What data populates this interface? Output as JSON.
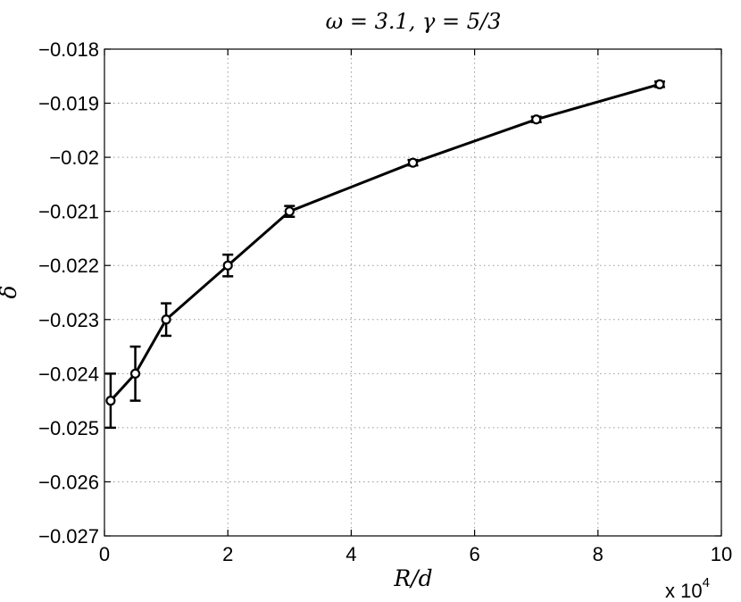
{
  "chart_data": {
    "type": "line",
    "title": "ω = 3.1, γ = 5/3",
    "xlabel": "R/d",
    "ylabel": "δ",
    "x_multiplier": "x 10",
    "x_multiplier_exp": "4",
    "xlim": [
      0,
      10
    ],
    "ylim": [
      -0.027,
      -0.018
    ],
    "x_ticks": [
      0,
      2,
      4,
      6,
      8,
      10
    ],
    "x_tick_labels": [
      "0",
      "2",
      "4",
      "6",
      "8",
      "10"
    ],
    "y_ticks": [
      -0.027,
      -0.026,
      -0.025,
      -0.024,
      -0.023,
      -0.022,
      -0.021,
      -0.02,
      -0.019,
      -0.018
    ],
    "y_tick_labels": [
      "−0.027",
      "−0.026",
      "−0.025",
      "−0.024",
      "−0.023",
      "−0.022",
      "−0.021",
      "−0.02",
      "−0.019",
      "−0.018"
    ],
    "grid": true,
    "line_color": "#000000",
    "series": [
      {
        "x": [
          0.1,
          0.5,
          1,
          2,
          3,
          5,
          7,
          9
        ],
        "y": [
          -0.0245,
          -0.024,
          -0.023,
          -0.022,
          -0.021,
          -0.0201,
          -0.0193,
          -0.01865
        ],
        "err": [
          0.0005,
          0.0005,
          0.0003,
          0.0002,
          0.0001,
          5e-05,
          5e-05,
          5e-05
        ]
      }
    ]
  }
}
